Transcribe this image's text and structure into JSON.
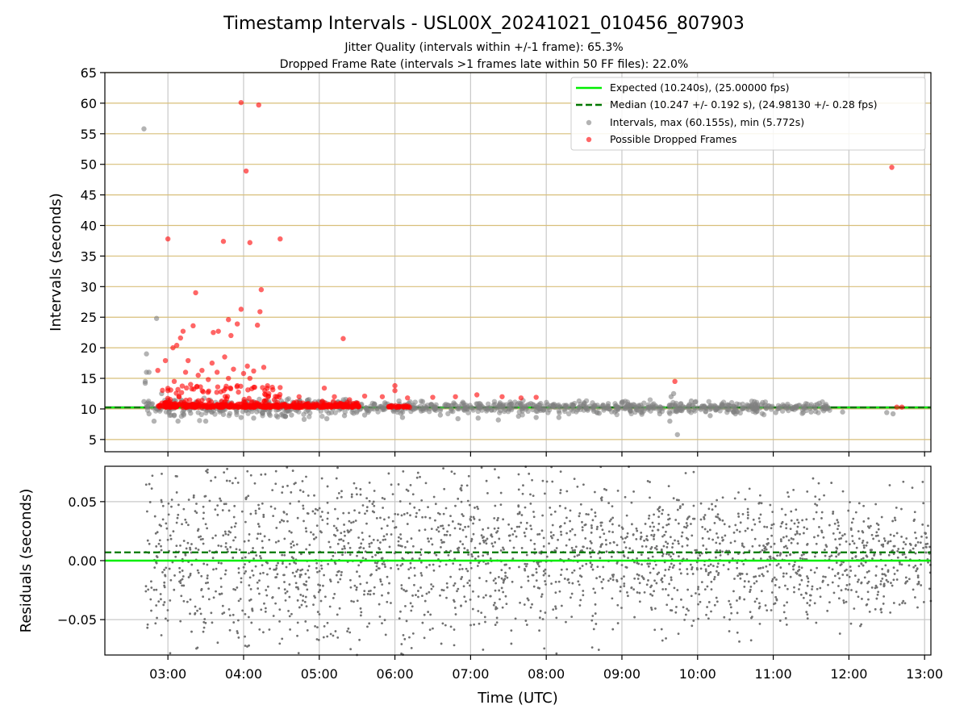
{
  "title": "Timestamp Intervals - USL00X_20241021_010456_807903",
  "subtitles": [
    "Jitter Quality (intervals within +/-1 frame): 65.3%",
    "Dropped Frame Rate (intervals >1 frames late within 50 FF files): 22.0%"
  ],
  "colors": {
    "expected": "#00ee00",
    "median": "#007700",
    "intervals": "#808080",
    "dropped": "#ff0000",
    "hgrid_top": "#d8bf7a",
    "vgrid": "#c8c8c8"
  },
  "chart_data": [
    {
      "type": "scatter",
      "panel": "intervals",
      "ylabel": "Intervals (seconds)",
      "xlim": [
        "02:10",
        "13:05"
      ],
      "ylim": [
        3,
        65
      ],
      "yticks": [
        "5",
        "10",
        "15",
        "20",
        "25",
        "30",
        "35",
        "40",
        "45",
        "50",
        "55",
        "60",
        "65"
      ],
      "xticks": [
        "03:00",
        "04:00",
        "05:00",
        "06:00",
        "07:00",
        "08:00",
        "09:00",
        "10:00",
        "11:00",
        "12:00",
        "13:00"
      ],
      "grid": true,
      "legend_position": "top-right",
      "legend": [
        "Expected (10.240s), (25.00000 fps)",
        "Median (10.247 +/- 0.192 s), (24.98130 +/- 0.28 fps)",
        "Intervals, max (60.155s), min (5.772s)",
        "Possible Dropped Frames"
      ],
      "expected_interval": 10.24,
      "median_interval": 10.247,
      "median_band": 0.192,
      "intervals_series": [
        {
          "x": "02:41",
          "y": 55.8
        },
        {
          "x": "02:43",
          "y": 19.0
        },
        {
          "x": "02:43",
          "y": 16.0
        },
        {
          "x": "02:45",
          "y": 16.0
        },
        {
          "x": "02:42",
          "y": 14.5
        },
        {
          "x": "02:42",
          "y": 14.2
        },
        {
          "x": "02:51",
          "y": 24.8
        },
        {
          "x": "02:41",
          "y": 11.2
        },
        {
          "x": "02:45",
          "y": 9.2
        },
        {
          "x": "02:49",
          "y": 8.0
        },
        {
          "x": "02:55",
          "y": 12.5
        },
        {
          "x": "03:05",
          "y": 9.0
        },
        {
          "x": "03:08",
          "y": 8.0
        },
        {
          "x": "03:18",
          "y": 9.3
        },
        {
          "x": "03:30",
          "y": 8.0
        },
        {
          "x": "03:44",
          "y": 9.1
        },
        {
          "x": "03:58",
          "y": 8.6
        },
        {
          "x": "04:08",
          "y": 8.5
        },
        {
          "x": "04:26",
          "y": 8.9
        },
        {
          "x": "04:38",
          "y": 9.0
        },
        {
          "x": "04:48",
          "y": 8.3
        },
        {
          "x": "05:00",
          "y": 11.1
        },
        {
          "x": "05:06",
          "y": 8.4
        },
        {
          "x": "05:20",
          "y": 8.9
        },
        {
          "x": "05:36",
          "y": 9.0
        },
        {
          "x": "05:52",
          "y": 11.0
        },
        {
          "x": "06:06",
          "y": 8.6
        },
        {
          "x": "06:22",
          "y": 11.2
        },
        {
          "x": "06:36",
          "y": 9.0
        },
        {
          "x": "06:50",
          "y": 8.4
        },
        {
          "x": "07:06",
          "y": 8.5
        },
        {
          "x": "07:22",
          "y": 8.2
        },
        {
          "x": "07:38",
          "y": 8.8
        },
        {
          "x": "07:52",
          "y": 8.6
        },
        {
          "x": "08:10",
          "y": 8.6
        },
        {
          "x": "08:26",
          "y": 11.3
        },
        {
          "x": "08:42",
          "y": 9.3
        },
        {
          "x": "09:00",
          "y": 11.1
        },
        {
          "x": "09:16",
          "y": 9.4
        },
        {
          "x": "09:30",
          "y": 9.2
        },
        {
          "x": "09:38",
          "y": 8.0
        },
        {
          "x": "09:39",
          "y": 12.0
        },
        {
          "x": "09:41",
          "y": 12.5
        },
        {
          "x": "09:44",
          "y": 5.8
        },
        {
          "x": "09:55",
          "y": 11.3
        },
        {
          "x": "10:10",
          "y": 8.9
        },
        {
          "x": "10:30",
          "y": 9.2
        },
        {
          "x": "10:45",
          "y": 11.2
        },
        {
          "x": "11:02",
          "y": 9.4
        },
        {
          "x": "11:30",
          "y": 9.5
        },
        {
          "x": "11:55",
          "y": 9.5
        },
        {
          "x": "12:30",
          "y": 9.4
        },
        {
          "x": "12:35",
          "y": 9.2
        }
      ],
      "dropped_series": [
        {
          "x": "03:58",
          "y": 60.1
        },
        {
          "x": "04:12",
          "y": 59.7
        },
        {
          "x": "04:02",
          "y": 48.9
        },
        {
          "x": "12:34",
          "y": 49.5
        },
        {
          "x": "03:00",
          "y": 37.8
        },
        {
          "x": "03:44",
          "y": 37.4
        },
        {
          "x": "04:05",
          "y": 37.2
        },
        {
          "x": "04:29",
          "y": 37.8
        },
        {
          "x": "04:14",
          "y": 29.5
        },
        {
          "x": "03:22",
          "y": 29.0
        },
        {
          "x": "03:58",
          "y": 26.3
        },
        {
          "x": "04:13",
          "y": 25.9
        },
        {
          "x": "03:48",
          "y": 24.6
        },
        {
          "x": "03:55",
          "y": 23.9
        },
        {
          "x": "04:11",
          "y": 23.7
        },
        {
          "x": "03:20",
          "y": 23.6
        },
        {
          "x": "03:12",
          "y": 22.7
        },
        {
          "x": "03:40",
          "y": 22.7
        },
        {
          "x": "03:36",
          "y": 22.5
        },
        {
          "x": "03:50",
          "y": 22.0
        },
        {
          "x": "03:10",
          "y": 21.6
        },
        {
          "x": "05:19",
          "y": 21.5
        },
        {
          "x": "03:07",
          "y": 20.4
        },
        {
          "x": "03:04",
          "y": 20.0
        },
        {
          "x": "03:45",
          "y": 18.5
        },
        {
          "x": "02:58",
          "y": 17.9
        },
        {
          "x": "03:16",
          "y": 17.9
        },
        {
          "x": "03:35",
          "y": 17.5
        },
        {
          "x": "04:03",
          "y": 17.0
        },
        {
          "x": "04:16",
          "y": 16.8
        },
        {
          "x": "02:52",
          "y": 16.3
        },
        {
          "x": "03:27",
          "y": 16.3
        },
        {
          "x": "03:52",
          "y": 16.5
        },
        {
          "x": "04:08",
          "y": 16.2
        },
        {
          "x": "03:14",
          "y": 16.0
        },
        {
          "x": "03:39",
          "y": 16.0
        },
        {
          "x": "04:00",
          "y": 15.8
        },
        {
          "x": "03:24",
          "y": 15.5
        },
        {
          "x": "03:48",
          "y": 15.0
        },
        {
          "x": "04:05",
          "y": 15.0
        },
        {
          "x": "03:32",
          "y": 14.8
        },
        {
          "x": "03:05",
          "y": 14.5
        },
        {
          "x": "09:42",
          "y": 14.5
        },
        {
          "x": "03:18",
          "y": 14.0
        },
        {
          "x": "03:55",
          "y": 13.8
        },
        {
          "x": "04:15",
          "y": 13.5
        },
        {
          "x": "04:29",
          "y": 13.5
        },
        {
          "x": "05:04",
          "y": 13.4
        },
        {
          "x": "06:00",
          "y": 13.8
        },
        {
          "x": "06:00",
          "y": 13.0
        },
        {
          "x": "03:00",
          "y": 13.0
        },
        {
          "x": "03:28",
          "y": 12.8
        },
        {
          "x": "03:42",
          "y": 12.8
        },
        {
          "x": "04:20",
          "y": 12.5
        },
        {
          "x": "04:44",
          "y": 12.0
        },
        {
          "x": "05:12",
          "y": 12.0
        },
        {
          "x": "05:36",
          "y": 12.1
        },
        {
          "x": "05:50",
          "y": 12.0
        },
        {
          "x": "06:10",
          "y": 11.8
        },
        {
          "x": "06:30",
          "y": 11.9
        },
        {
          "x": "06:48",
          "y": 12.0
        },
        {
          "x": "07:05",
          "y": 12.3
        },
        {
          "x": "07:25",
          "y": 12.0
        },
        {
          "x": "07:40",
          "y": 11.8
        },
        {
          "x": "07:52",
          "y": 11.9
        },
        {
          "x": "04:40",
          "y": 11.0
        },
        {
          "x": "05:24",
          "y": 11.5
        },
        {
          "x": "12:38",
          "y": 10.3
        },
        {
          "x": "12:42",
          "y": 10.3
        }
      ],
      "dropped_cluster_range": [
        "02:52",
        "05:32"
      ]
    },
    {
      "type": "scatter",
      "panel": "residuals",
      "ylabel": "Residuals (seconds)",
      "xlabel": "Time (UTC)",
      "xlim": [
        "02:10",
        "13:05"
      ],
      "ylim": [
        -0.08,
        0.08
      ],
      "yticks": [
        "−0.05",
        "0.00",
        "0.05"
      ],
      "xticks": [
        "03:00",
        "04:00",
        "05:00",
        "06:00",
        "07:00",
        "08:00",
        "09:00",
        "10:00",
        "11:00",
        "12:00",
        "13:00"
      ],
      "grid": true,
      "expected_residual": 0.0,
      "median_residual": 0.007,
      "residual_start": "02:42",
      "residual_end": "13:05"
    }
  ]
}
